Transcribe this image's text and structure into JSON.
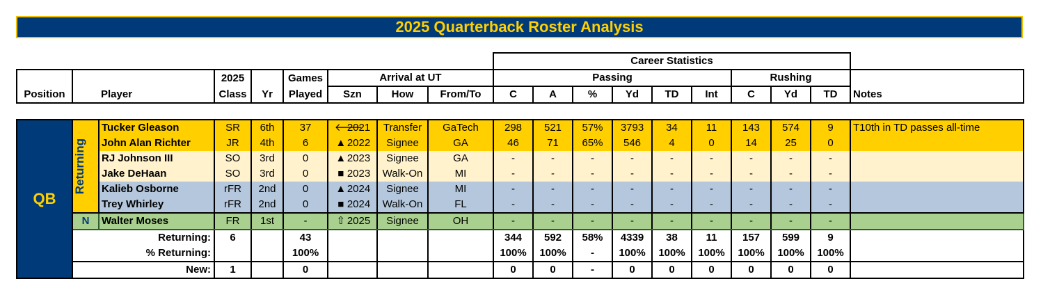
{
  "title": "2025 Quarterback Roster Analysis",
  "headers": {
    "career_statistics": "Career Statistics",
    "passing": "Passing",
    "rushing": "Rushing",
    "position": "Position",
    "player": "Player",
    "class_top": "2025",
    "class_bottom": "Class",
    "yr": "Yr",
    "games_top": "Games",
    "games_bottom": "Played",
    "arrival": "Arrival at UT",
    "szn": "Szn",
    "how": "How",
    "from_to": "From/To",
    "pass_c": "C",
    "pass_a": "A",
    "pass_pct": "%",
    "pass_yd": "Yd",
    "pass_td": "TD",
    "pass_int": "Int",
    "rush_c": "C",
    "rush_yd": "Yd",
    "rush_td": "TD",
    "notes": "Notes"
  },
  "position": "QB",
  "groups": {
    "returning": "Returning",
    "new": "N"
  },
  "players": [
    {
      "name": "Tucker Gleason",
      "class": "SR",
      "yr": "6th",
      "games": "37",
      "symbol": "🡐",
      "szn": "2021",
      "how": "Transfer",
      "from": "GaTech",
      "c": "298",
      "a": "521",
      "pct": "57%",
      "yd": "3793",
      "td": "34",
      "int": "11",
      "rc": "143",
      "ryd": "574",
      "rtd": "9",
      "notes": "T10th in TD passes all-time"
    },
    {
      "name": "John Alan Richter",
      "class": "JR",
      "yr": "4th",
      "games": "6",
      "symbol": "▲",
      "szn": "2022",
      "how": "Signee",
      "from": "GA",
      "c": "46",
      "a": "71",
      "pct": "65%",
      "yd": "546",
      "td": "4",
      "int": "0",
      "rc": "14",
      "ryd": "25",
      "rtd": "0",
      "notes": ""
    },
    {
      "name": "RJ Johnson III",
      "class": "SO",
      "yr": "3rd",
      "games": "0",
      "symbol": "▲",
      "szn": "2023",
      "how": "Signee",
      "from": "GA",
      "c": "-",
      "a": "-",
      "pct": "-",
      "yd": "-",
      "td": "-",
      "int": "-",
      "rc": "-",
      "ryd": "-",
      "rtd": "-",
      "notes": ""
    },
    {
      "name": "Jake DeHaan",
      "class": "SO",
      "yr": "3rd",
      "games": "0",
      "symbol": "■",
      "szn": "2023",
      "how": "Walk-On",
      "from": "MI",
      "c": "-",
      "a": "-",
      "pct": "-",
      "yd": "-",
      "td": "-",
      "int": "-",
      "rc": "-",
      "ryd": "-",
      "rtd": "-",
      "notes": ""
    },
    {
      "name": "Kalieb Osborne",
      "class": "rFR",
      "yr": "2nd",
      "games": "0",
      "symbol": "▲",
      "szn": "2024",
      "how": "Signee",
      "from": "MI",
      "c": "-",
      "a": "-",
      "pct": "-",
      "yd": "-",
      "td": "-",
      "int": "-",
      "rc": "-",
      "ryd": "-",
      "rtd": "-",
      "notes": ""
    },
    {
      "name": "Trey Whirley",
      "class": "rFR",
      "yr": "2nd",
      "games": "0",
      "symbol": "■",
      "szn": "2024",
      "how": "Walk-On",
      "from": "FL",
      "c": "-",
      "a": "-",
      "pct": "-",
      "yd": "-",
      "td": "-",
      "int": "-",
      "rc": "-",
      "ryd": "-",
      "rtd": "-",
      "notes": ""
    },
    {
      "name": "Walter Moses",
      "class": "FR",
      "yr": "1st",
      "games": "-",
      "symbol": "⇧",
      "szn": "2025",
      "how": "Signee",
      "from": "OH",
      "c": "-",
      "a": "-",
      "pct": "-",
      "yd": "-",
      "td": "-",
      "int": "-",
      "rc": "-",
      "ryd": "-",
      "rtd": "-",
      "notes": ""
    }
  ],
  "summary": {
    "returning": {
      "label": "Returning:",
      "count": "6",
      "games": "43",
      "c": "344",
      "a": "592",
      "pct": "58%",
      "yd": "4339",
      "td": "38",
      "int": "11",
      "rc": "157",
      "ryd": "599",
      "rtd": "9"
    },
    "pct_returning": {
      "label": "% Returning:",
      "games": "100%",
      "c": "100%",
      "a": "100%",
      "pct": "-",
      "yd": "100%",
      "td": "100%",
      "int": "100%",
      "rc": "100%",
      "ryd": "100%",
      "rtd": "100%"
    },
    "new": {
      "label": "New:",
      "count": "1",
      "games": "0",
      "c": "0",
      "a": "0",
      "pct": "-",
      "yd": "0",
      "td": "0",
      "int": "0",
      "rc": "0",
      "ryd": "0",
      "rtd": "0"
    }
  },
  "colors": {
    "navy": "#003a78",
    "gold": "#ffcf00",
    "light_yellow": "#fff2cc",
    "light_blue": "#b4c7dc",
    "light_green": "#a9d08e"
  }
}
